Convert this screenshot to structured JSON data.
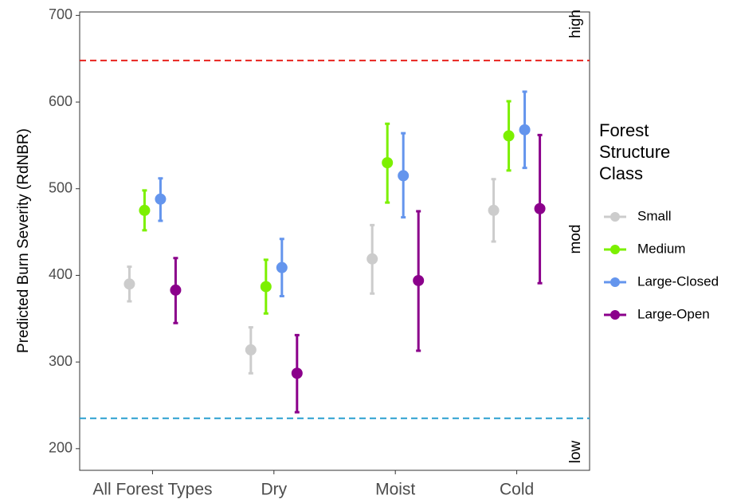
{
  "chart_data": {
    "type": "errorbar",
    "y_label": "Predicted Burn Severity (RdNBR)",
    "categories": [
      "All Forest Types",
      "Dry",
      "Moist",
      "Cold"
    ],
    "legend_title": "Forest Structure Class",
    "series": [
      {
        "name": "Small",
        "color": "#cccccc",
        "values": [
          390,
          314,
          419,
          475
        ],
        "lower": [
          370,
          287,
          379,
          439
        ],
        "upper": [
          410,
          340,
          458,
          511
        ]
      },
      {
        "name": "Medium",
        "color": "#7cf000",
        "values": [
          475,
          387,
          530,
          561
        ],
        "lower": [
          452,
          356,
          484,
          521
        ],
        "upper": [
          498,
          418,
          575,
          601
        ]
      },
      {
        "name": "Large-Closed",
        "color": "#6495ed",
        "values": [
          488,
          409,
          515,
          568
        ],
        "lower": [
          463,
          376,
          467,
          524
        ],
        "upper": [
          512,
          442,
          564,
          612
        ]
      },
      {
        "name": "Large-Open",
        "color": "#8b008b",
        "values": [
          383,
          287,
          394,
          477
        ],
        "lower": [
          345,
          242,
          313,
          391
        ],
        "upper": [
          420,
          331,
          474,
          562
        ]
      }
    ],
    "hlines": [
      {
        "value": 648,
        "color": "#e8231f"
      },
      {
        "value": 235,
        "color": "#2a9fd0"
      }
    ],
    "zone_labels": [
      "high",
      "mod",
      "low"
    ],
    "ylim": [
      175,
      704
    ],
    "yticks": [
      200,
      300,
      400,
      500,
      600,
      700
    ]
  }
}
